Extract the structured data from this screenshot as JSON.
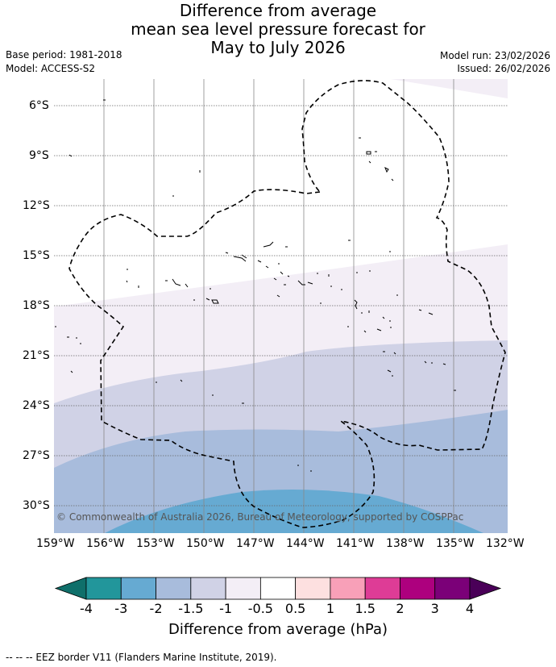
{
  "title": {
    "line1": "Difference from average",
    "line2": "mean sea level pressure forecast for",
    "line3": "May to July 2026"
  },
  "meta": {
    "base_period": "Base period: 1981-2018",
    "model": "Model: ACCESS-S2",
    "model_run": "Model run: 23/02/2026",
    "issued": "Issued: 26/02/2026"
  },
  "map": {
    "copyright": "© Commonwealth of Australia 2026, Bureau of Meteorology, supported by COSPPac",
    "lat_labels": [
      "6°S",
      "9°S",
      "12°S",
      "15°S",
      "18°S",
      "21°S",
      "24°S",
      "27°S",
      "30°S"
    ],
    "lon_labels": [
      "159°W",
      "156°W",
      "153°W",
      "150°W",
      "147°W",
      "144°W",
      "141°W",
      "138°W",
      "135°W",
      "132°W"
    ],
    "lat_range": [
      -32.5,
      -4.5
    ],
    "lon_range": [
      -159,
      -132
    ]
  },
  "colorbar": {
    "title": "Difference from average (hPa)",
    "ticks": [
      "-4",
      "-3",
      "-2",
      "-1.5",
      "-1",
      "-0.5",
      "0.5",
      "1",
      "1.5",
      "2",
      "3",
      "4"
    ],
    "colors": [
      "#0f6f6a",
      "#22969b",
      "#66aad2",
      "#a8bcdc",
      "#d0d2e6",
      "#f3eef6",
      "#ffffff",
      "#fde0e0",
      "#f8a0b8",
      "#de3c96",
      "#ad007e",
      "#7b0078",
      "#4a0058"
    ]
  },
  "footnote": "-- -- -- EEZ border V11 (Flanders Marine Institute, 2019)."
}
